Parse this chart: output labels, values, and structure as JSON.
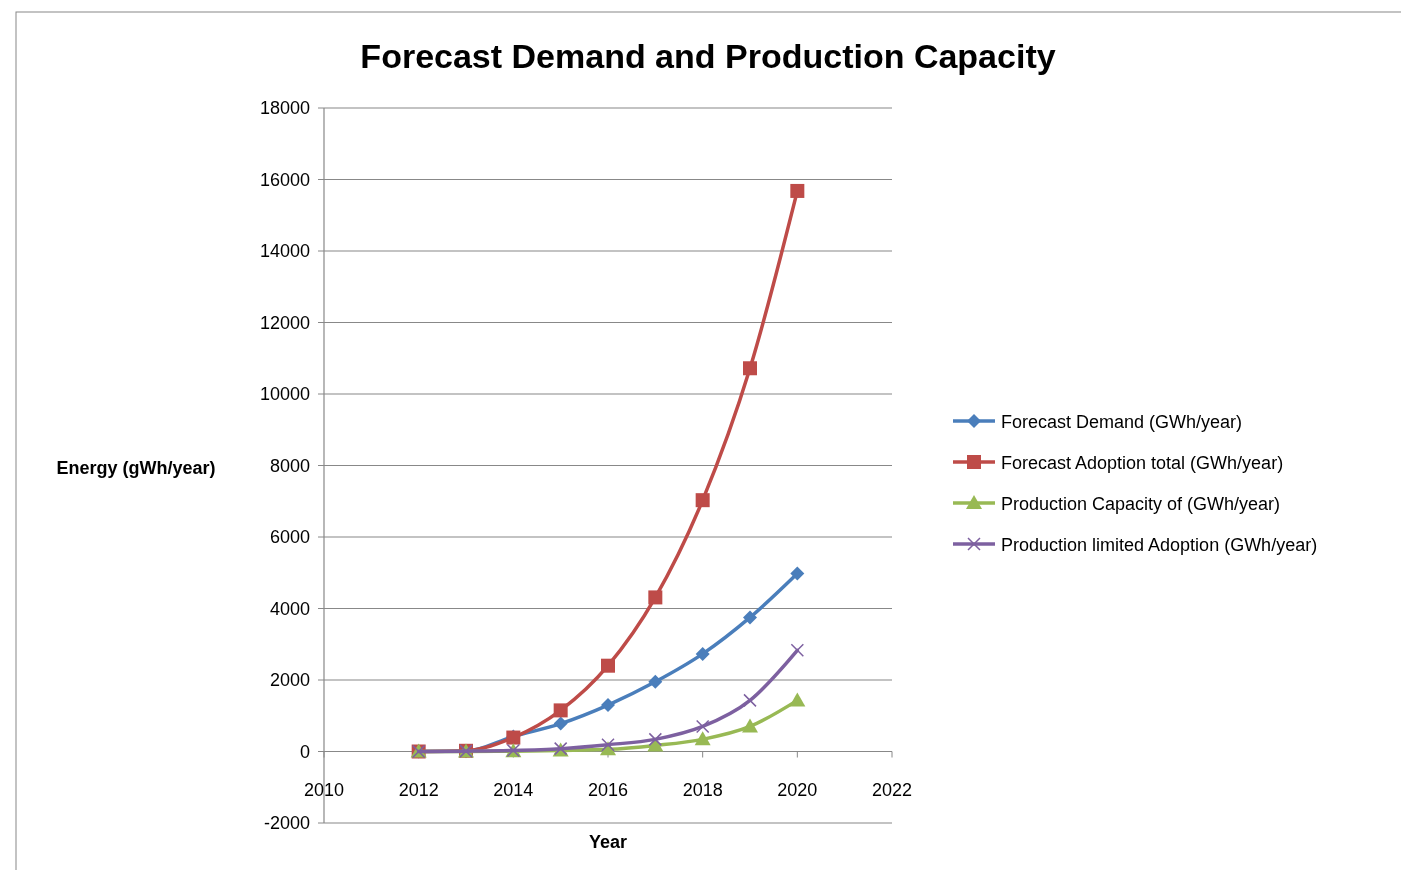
{
  "chart_data": {
    "type": "line",
    "title": "Forecast Demand and Production Capacity",
    "xlabel": "Year",
    "ylabel": "Energy (gWh/year)",
    "x": [
      2012,
      2013,
      2014,
      2015,
      2016,
      2017,
      2018,
      2019,
      2020
    ],
    "xlim": [
      2010,
      2022
    ],
    "xticks": [
      2010,
      2012,
      2014,
      2016,
      2018,
      2020,
      2022
    ],
    "ylim": [
      -2000,
      18000
    ],
    "yticks": [
      -2000,
      0,
      2000,
      4000,
      6000,
      8000,
      10000,
      12000,
      14000,
      16000,
      18000
    ],
    "grid": "y",
    "legend": "right",
    "series": [
      {
        "name": "Forecast Demand  (GWh/year)",
        "color": "#4a7ebb",
        "marker": "diamond",
        "values": [
          0,
          10,
          420,
          780,
          1300,
          1950,
          2730,
          3750,
          4980
        ]
      },
      {
        "name": "Forecast Adoption total  (GWh/year)",
        "color": "#be4b48",
        "marker": "square",
        "values": [
          0,
          20,
          390,
          1150,
          2400,
          4310,
          7030,
          10720,
          15680
        ]
      },
      {
        "name": "Production Capacity of (GWh/year)",
        "color": "#98b954",
        "marker": "triangle",
        "values": [
          0,
          0,
          10,
          30,
          60,
          170,
          340,
          700,
          1430
        ]
      },
      {
        "name": "Production limited  Adoption (GWh/year)",
        "color": "#7d60a0",
        "marker": "cross",
        "values": [
          0,
          10,
          30,
          80,
          190,
          340,
          700,
          1430,
          2830
        ]
      }
    ]
  }
}
